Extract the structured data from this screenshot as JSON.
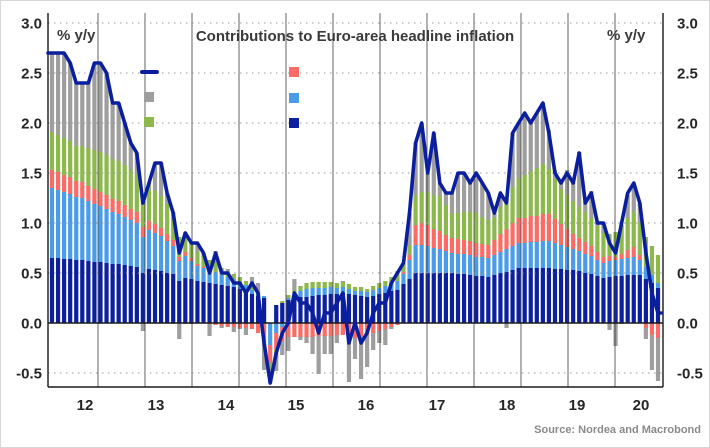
{
  "title": "Contributions to Euro-area headline inflation",
  "axis_label_left": "% y/y",
  "axis_label_right": "% y/y",
  "source": "Source: Nordea and Macrobond",
  "colors": {
    "line": "#0b1f9e",
    "navy": "#0c1f9e",
    "lightblue": "#4a9ce8",
    "red": "#fb6c66",
    "green": "#8cb84c",
    "gray": "#9e9e9e",
    "axis": "#1a1a1a",
    "vgrid": "#3c3c3c",
    "dotted": "#9a9a9a"
  },
  "legend": {
    "items": [
      {
        "id": "line-marker",
        "marker": "line",
        "color": "line"
      },
      {
        "id": "gray-marker",
        "marker": "square",
        "color": "gray"
      },
      {
        "id": "green-marker",
        "marker": "square",
        "color": "green"
      },
      {
        "id": "red-marker",
        "marker": "square",
        "color": "red"
      },
      {
        "id": "lightblue-marker",
        "marker": "square",
        "color": "lightblue"
      },
      {
        "id": "navy-marker",
        "marker": "square",
        "color": "navy"
      }
    ]
  },
  "chart_data": {
    "type": "stacked-bar-line",
    "title": "Contributions to Euro-area headline inflation",
    "x_frequency": "monthly",
    "x_start": "2012-01",
    "x_end": "2020-05",
    "x_tick_labels": [
      "12",
      "13",
      "14",
      "15",
      "16",
      "17",
      "18",
      "19",
      "20"
    ],
    "y_ticks": [
      3.0,
      2.5,
      2.0,
      1.5,
      1.0,
      0.5,
      0.0,
      -0.5
    ],
    "ylim": [
      -0.65,
      3.0
    ],
    "unit": "percentage points, contribution to y/y HICP inflation",
    "grid": "vertical solid lines every 8 months, dotted horizontal lines each 0.5",
    "legend_position": "top inside, two columns, markers only",
    "series": [
      {
        "name": "navy",
        "color": "navy",
        "values": [
          0.65,
          0.65,
          0.64,
          0.64,
          0.63,
          0.63,
          0.62,
          0.61,
          0.61,
          0.6,
          0.59,
          0.59,
          0.58,
          0.57,
          0.56,
          0.5,
          0.54,
          0.53,
          0.52,
          0.5,
          0.49,
          0.42,
          0.45,
          0.44,
          0.42,
          0.41,
          0.4,
          0.39,
          0.38,
          0.37,
          0.36,
          0.34,
          0.32,
          0.29,
          0.27,
          0.25,
          0.0,
          0.18,
          0.2,
          0.23,
          0.25,
          0.26,
          0.26,
          0.27,
          0.28,
          0.28,
          0.29,
          0.29,
          0.3,
          0.29,
          0.28,
          0.27,
          0.26,
          0.27,
          0.29,
          0.3,
          0.32,
          0.33,
          0.39,
          0.44,
          0.5,
          0.5,
          0.5,
          0.5,
          0.5,
          0.5,
          0.5,
          0.49,
          0.49,
          0.48,
          0.47,
          0.47,
          0.46,
          0.48,
          0.5,
          0.51,
          0.53,
          0.55,
          0.55,
          0.55,
          0.55,
          0.55,
          0.55,
          0.54,
          0.54,
          0.53,
          0.53,
          0.52,
          0.5,
          0.49,
          0.47,
          0.45,
          0.46,
          0.47,
          0.47,
          0.48,
          0.48,
          0.48,
          0.44,
          0.4,
          0.35
        ]
      },
      {
        "name": "lightblue",
        "color": "lightblue",
        "values": [
          0.7,
          0.68,
          0.67,
          0.65,
          0.63,
          0.62,
          0.6,
          0.58,
          0.56,
          0.54,
          0.52,
          0.5,
          0.48,
          0.46,
          0.44,
          0.36,
          0.39,
          0.37,
          0.35,
          0.32,
          0.28,
          0.2,
          0.22,
          0.18,
          0.15,
          0.14,
          0.13,
          0.12,
          0.1,
          0.09,
          0.08,
          0.07,
          0.06,
          0.04,
          0.03,
          0.02,
          -0.22,
          -0.1,
          -0.04,
          0.02,
          0.04,
          0.06,
          0.08,
          0.08,
          0.07,
          0.07,
          0.07,
          0.06,
          0.06,
          0.05,
          0.04,
          0.05,
          0.05,
          0.06,
          0.06,
          0.07,
          0.08,
          0.09,
          0.1,
          0.19,
          0.28,
          0.28,
          0.27,
          0.25,
          0.24,
          0.22,
          0.2,
          0.2,
          0.2,
          0.2,
          0.19,
          0.19,
          0.19,
          0.2,
          0.21,
          0.23,
          0.24,
          0.25,
          0.25,
          0.26,
          0.26,
          0.27,
          0.27,
          0.26,
          0.24,
          0.23,
          0.21,
          0.2,
          0.19,
          0.18,
          0.16,
          0.15,
          0.16,
          0.16,
          0.17,
          0.17,
          0.18,
          0.15,
          0.12,
          0.08,
          0.05
        ]
      },
      {
        "name": "red",
        "color": "red",
        "values": [
          0.18,
          0.18,
          0.17,
          0.17,
          0.16,
          0.16,
          0.15,
          0.15,
          0.14,
          0.14,
          0.13,
          0.13,
          0.12,
          0.11,
          0.11,
          0.1,
          0.09,
          0.09,
          0.08,
          0.07,
          0.06,
          0.04,
          0.04,
          0.03,
          0.02,
          0.01,
          -0.01,
          -0.02,
          -0.03,
          -0.04,
          -0.04,
          -0.05,
          -0.05,
          -0.06,
          -0.1,
          -0.14,
          -0.18,
          -0.16,
          -0.14,
          -0.14,
          -0.14,
          -0.14,
          -0.14,
          -0.14,
          -0.13,
          -0.13,
          -0.13,
          -0.12,
          -0.12,
          -0.14,
          -0.15,
          -0.13,
          -0.12,
          -0.1,
          -0.08,
          -0.06,
          -0.04,
          -0.02,
          0.02,
          0.05,
          0.2,
          0.22,
          0.21,
          0.19,
          0.18,
          0.16,
          0.15,
          0.15,
          0.14,
          0.14,
          0.14,
          0.13,
          0.13,
          0.15,
          0.18,
          0.2,
          0.23,
          0.25,
          0.25,
          0.26,
          0.26,
          0.27,
          0.27,
          0.24,
          0.21,
          0.18,
          0.15,
          0.13,
          0.12,
          0.1,
          0.08,
          0.06,
          0.05,
          0.03,
          0.05,
          0.08,
          0.1,
          0.05,
          -0.05,
          -0.12,
          -0.15
        ]
      },
      {
        "name": "green",
        "color": "green",
        "values": [
          0.38,
          0.37,
          0.37,
          0.36,
          0.35,
          0.36,
          0.38,
          0.39,
          0.4,
          0.4,
          0.4,
          0.4,
          0.4,
          0.39,
          0.38,
          0.32,
          0.35,
          0.33,
          0.32,
          0.3,
          0.28,
          0.2,
          0.2,
          0.16,
          0.12,
          0.11,
          0.1,
          0.09,
          0.07,
          0.06,
          0.05,
          0.05,
          0.04,
          0.04,
          0.03,
          -0.03,
          -0.06,
          -0.03,
          0.02,
          0.03,
          0.04,
          0.05,
          0.06,
          0.06,
          0.06,
          0.06,
          0.05,
          0.05,
          0.05,
          0.05,
          0.04,
          0.04,
          0.03,
          0.04,
          0.05,
          0.05,
          0.06,
          0.07,
          0.09,
          0.1,
          0.3,
          0.31,
          0.33,
          0.34,
          0.35,
          0.3,
          0.25,
          0.26,
          0.28,
          0.29,
          0.3,
          0.27,
          0.25,
          0.22,
          0.27,
          0.31,
          0.36,
          0.4,
          0.43,
          0.45,
          0.48,
          0.5,
          0.45,
          0.4,
          0.35,
          0.34,
          0.33,
          0.31,
          0.3,
          0.28,
          0.26,
          0.24,
          0.22,
          0.25,
          0.29,
          0.32,
          0.35,
          0.33,
          0.3,
          0.29,
          0.28
        ]
      },
      {
        "name": "gray",
        "color": "gray",
        "values": [
          0.79,
          0.82,
          0.85,
          0.78,
          0.63,
          0.63,
          0.65,
          0.87,
          0.89,
          0.82,
          0.56,
          0.58,
          0.42,
          0.27,
          0.21,
          -0.08,
          0.03,
          0.28,
          0.33,
          0.11,
          -0.01,
          -0.16,
          -0.01,
          -0.01,
          0.09,
          0.03,
          -0.12,
          0.12,
          -0.02,
          0.02,
          -0.05,
          -0.01,
          -0.07,
          0.09,
          0.07,
          -0.3,
          -0.14,
          -0.19,
          -0.14,
          -0.14,
          0.11,
          -0.03,
          -0.06,
          -0.17,
          -0.38,
          -0.18,
          -0.18,
          -0.08,
          0.01,
          -0.45,
          -0.21,
          -0.43,
          -0.32,
          -0.17,
          -0.12,
          -0.16,
          -0.02,
          0.03,
          0.0,
          0.32,
          0.52,
          0.69,
          0.19,
          0.62,
          0.13,
          0.12,
          0.2,
          0.4,
          0.39,
          0.29,
          0.4,
          0.34,
          0.27,
          0.05,
          0.14,
          -0.05,
          0.54,
          0.55,
          0.62,
          0.48,
          0.55,
          0.61,
          0.39,
          0.09,
          0.09,
          0.25,
          0.2,
          0.55,
          0.11,
          0.27,
          0.05,
          0.11,
          -0.07,
          -0.23,
          -0.01,
          0.23,
          0.29,
          0.19,
          -0.11,
          -0.35,
          -0.43
        ]
      }
    ],
    "line_series": {
      "name": "euro-area-headline-hicp-yoy",
      "color": "line",
      "values": [
        2.7,
        2.7,
        2.7,
        2.6,
        2.4,
        2.4,
        2.4,
        2.6,
        2.6,
        2.5,
        2.2,
        2.2,
        2.0,
        1.8,
        1.7,
        1.2,
        1.4,
        1.6,
        1.6,
        1.3,
        1.1,
        0.7,
        0.9,
        0.8,
        0.8,
        0.7,
        0.5,
        0.7,
        0.5,
        0.5,
        0.4,
        0.4,
        0.3,
        0.4,
        0.3,
        -0.2,
        -0.6,
        -0.3,
        -0.1,
        0.0,
        0.3,
        0.2,
        0.2,
        0.1,
        -0.1,
        0.1,
        0.1,
        0.2,
        0.3,
        -0.2,
        0.0,
        -0.2,
        -0.1,
        0.1,
        0.2,
        0.2,
        0.4,
        0.5,
        0.6,
        1.1,
        1.8,
        2.0,
        1.5,
        1.9,
        1.4,
        1.3,
        1.3,
        1.5,
        1.5,
        1.4,
        1.5,
        1.4,
        1.3,
        1.1,
        1.3,
        1.2,
        1.9,
        2.0,
        2.1,
        2.0,
        2.1,
        2.2,
        1.9,
        1.5,
        1.4,
        1.5,
        1.4,
        1.7,
        1.2,
        1.3,
        1.0,
        1.0,
        0.8,
        0.7,
        1.0,
        1.3,
        1.4,
        1.2,
        0.7,
        0.3,
        0.1
      ]
    }
  }
}
